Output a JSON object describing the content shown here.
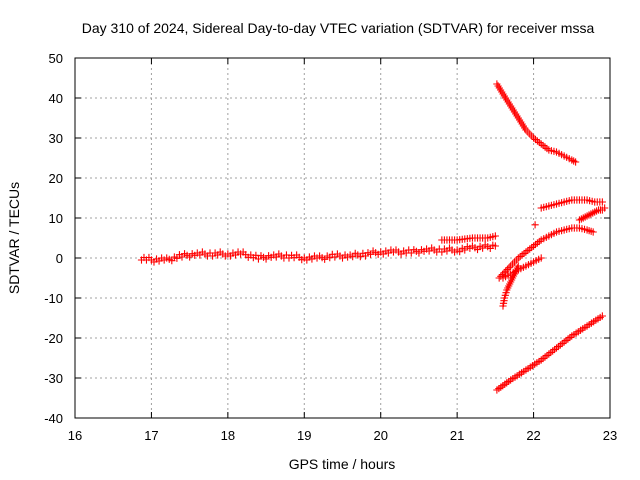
{
  "chart_data": {
    "type": "scatter",
    "title": "Day 310 of 2024, Sidereal Day-to-day VTEC variation (SDTVAR) for receiver mssa",
    "xlabel": "GPS time / hours",
    "ylabel": "SDTVAR / TECUs",
    "xlim": [
      16,
      23
    ],
    "ylim": [
      -40,
      50
    ],
    "xticks": [
      "16",
      "17",
      "18",
      "19",
      "20",
      "21",
      "22",
      "23"
    ],
    "yticks": [
      "-40",
      "-30",
      "-20",
      "-10",
      "0",
      "10",
      "20",
      "30",
      "40",
      "50"
    ],
    "grid": true,
    "marker": "+",
    "color": "#ff0000",
    "series": [
      {
        "name": "main-band",
        "x": [
          16.87,
          17.0,
          17.2,
          17.4,
          17.6,
          17.8,
          18.0,
          18.2,
          18.4,
          18.6,
          18.8,
          19.0,
          19.2,
          19.4,
          19.6,
          19.8,
          20.0,
          20.2,
          20.4,
          20.6,
          20.8,
          21.0,
          21.2,
          21.5
        ],
        "y": [
          0,
          -0.5,
          -0.5,
          0.5,
          1,
          1,
          1,
          1,
          0,
          0.5,
          0.5,
          0,
          0,
          0.5,
          0.5,
          1,
          1.5,
          1.5,
          1.5,
          2,
          2,
          2,
          2.5,
          3
        ]
      },
      {
        "name": "upper-step",
        "x": [
          20.8,
          21.0,
          21.2,
          21.4,
          21.5
        ],
        "y": [
          4.5,
          4.5,
          5,
          5,
          5.5
        ]
      },
      {
        "name": "descending-arc",
        "x": [
          21.52,
          21.6,
          21.7,
          21.8,
          21.9,
          22.0,
          22.1,
          22.2,
          22.3,
          22.4,
          22.5,
          22.55
        ],
        "y": [
          43.5,
          41,
          38,
          35,
          32,
          30,
          28.5,
          27,
          26.5,
          25.5,
          24.5,
          24
        ]
      },
      {
        "name": "rising-arc-upper",
        "x": [
          22.1,
          22.2,
          22.3,
          22.4,
          22.5,
          22.6,
          22.7,
          22.8,
          22.9
        ],
        "y": [
          12.5,
          13,
          13.5,
          14,
          14.5,
          14.5,
          14.5,
          14,
          14
        ]
      },
      {
        "name": "rising-arc-mid",
        "x": [
          21.55,
          21.7,
          21.8,
          21.9,
          22.0,
          22.1,
          22.2,
          22.3,
          22.4,
          22.5,
          22.6,
          22.7,
          22.78
        ],
        "y": [
          -5,
          -2,
          0,
          1.5,
          3,
          4.5,
          5.5,
          6.5,
          7,
          7.5,
          7.5,
          7,
          6.5
        ]
      },
      {
        "name": "short-rising",
        "x": [
          21.6,
          21.7,
          21.8,
          21.9,
          22.0,
          22.1
        ],
        "y": [
          -5,
          -4,
          -3,
          -2,
          -1,
          0
        ]
      },
      {
        "name": "drop-branch",
        "x": [
          21.6,
          21.62,
          21.65,
          21.7,
          21.75,
          21.8
        ],
        "y": [
          -12,
          -10,
          -8,
          -6,
          -4,
          -2
        ]
      },
      {
        "name": "lower-line",
        "x": [
          21.52,
          21.7,
          21.9,
          22.1,
          22.3,
          22.5,
          22.7,
          22.9
        ],
        "y": [
          -33,
          -30.5,
          -28,
          -25.5,
          -22.5,
          -19.5,
          -17,
          -14.5
        ]
      },
      {
        "name": "tail-cluster",
        "x": [
          22.6,
          22.65,
          22.7,
          22.75,
          22.8,
          22.85,
          22.9,
          22.93
        ],
        "y": [
          9.5,
          10,
          10.5,
          11,
          11.5,
          12,
          12,
          12.5
        ]
      },
      {
        "name": "isolated",
        "x": [
          22.02
        ],
        "y": [
          8.3
        ]
      }
    ]
  }
}
